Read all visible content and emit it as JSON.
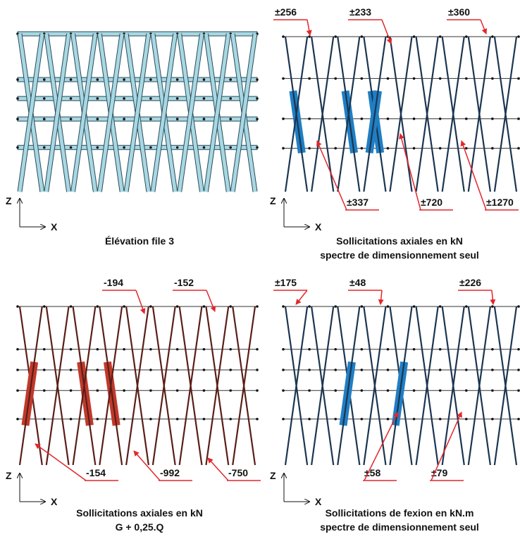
{
  "panels": [
    {
      "caption": [
        "Élévation file 3"
      ],
      "axis": {
        "z": "Z",
        "x": "X"
      },
      "annotations": []
    },
    {
      "caption": [
        "Sollicitations axiales en kN",
        "spectre de dimensionnement seul"
      ],
      "axis": {
        "z": "Z",
        "x": "X"
      },
      "annotations": [
        "±256",
        "±233",
        "±360",
        "±337",
        "±720",
        "±1270"
      ]
    },
    {
      "caption": [
        "Sollicitations axiales en kN",
        "G + 0,25.Q"
      ],
      "axis": {
        "z": "Z",
        "x": "X"
      },
      "annotations": [
        "-194",
        "-152",
        "-154",
        "-992",
        "-750"
      ]
    },
    {
      "caption": [
        "Sollicitations de fexion en kN.m",
        "spectre de dimensionnement seul"
      ],
      "axis": {
        "z": "Z",
        "x": "X"
      },
      "annotations": [
        "±175",
        "±48",
        "±226",
        "±58",
        "±79"
      ]
    }
  ]
}
